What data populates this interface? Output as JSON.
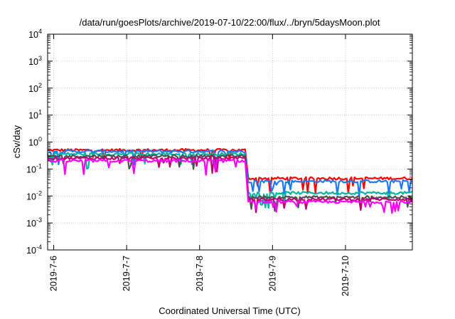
{
  "chart_data": {
    "type": "line",
    "title": "/data/run/goesPlots/archive/2019-07-10/22:00/flux/../bryn/5daysMoon.plot",
    "xlabel": "Coordinated Universal Time (UTC)",
    "ylabel": "cSv/day",
    "yscale": "log",
    "ylim": [
      0.0001,
      10000
    ],
    "xlim": [
      "2019-07-05T22:00",
      "2019-07-10T22:00"
    ],
    "y_ticks": [
      {
        "base": "10",
        "exp": "-4"
      },
      {
        "base": "10",
        "exp": "-3"
      },
      {
        "base": "10",
        "exp": "-2"
      },
      {
        "base": "10",
        "exp": "-1"
      },
      {
        "base": "10",
        "exp": "0"
      },
      {
        "base": "10",
        "exp": "1"
      },
      {
        "base": "10",
        "exp": "2"
      },
      {
        "base": "10",
        "exp": "3"
      },
      {
        "base": "10",
        "exp": "4"
      }
    ],
    "x_ticks": [
      {
        "label": "2019-7-6",
        "x": "2019-07-06T00:00"
      },
      {
        "label": "2019-7-7",
        "x": "2019-07-07T00:00"
      },
      {
        "label": "2019-7-8",
        "x": "2019-07-08T00:00"
      },
      {
        "label": "2019-7-9",
        "x": "2019-07-09T00:00"
      },
      {
        "label": "2019-7-10",
        "x": "2019-07-10T00:00"
      }
    ],
    "grid": true,
    "legend": "none",
    "series": [
      {
        "color": "#ff0000",
        "segments": [
          {
            "from": "2019-07-05T22:00",
            "to": "2019-07-08T15:00",
            "level": 0.5
          },
          {
            "from": "2019-07-08T16:00",
            "to": "2019-07-10T22:00",
            "level": 0.045
          }
        ]
      },
      {
        "color": "#1e78ff",
        "segments": [
          {
            "from": "2019-07-05T22:00",
            "to": "2019-07-08T15:00",
            "level": 0.45
          },
          {
            "from": "2019-07-08T16:00",
            "to": "2019-07-10T22:00",
            "level": 0.035
          }
        ]
      },
      {
        "color": "#00b4a0",
        "segments": [
          {
            "from": "2019-07-05T22:00",
            "to": "2019-07-08T15:00",
            "level": 0.36
          },
          {
            "from": "2019-07-08T16:00",
            "to": "2019-07-10T22:00",
            "level": 0.013
          }
        ]
      },
      {
        "color": "#505050",
        "segments": [
          {
            "from": "2019-07-05T22:00",
            "to": "2019-07-08T15:00",
            "level": 0.3
          },
          {
            "from": "2019-07-08T16:00",
            "to": "2019-07-10T22:00",
            "level": 0.009
          }
        ]
      },
      {
        "color": "#c00070",
        "segments": [
          {
            "from": "2019-07-05T22:00",
            "to": "2019-07-08T15:00",
            "level": 0.25
          },
          {
            "from": "2019-07-08T16:00",
            "to": "2019-07-10T22:00",
            "level": 0.0075
          }
        ]
      },
      {
        "color": "#ff00ff",
        "segments": [
          {
            "from": "2019-07-05T22:00",
            "to": "2019-07-08T15:00",
            "level": 0.2
          },
          {
            "from": "2019-07-08T16:00",
            "to": "2019-07-10T22:00",
            "level": 0.006
          }
        ]
      }
    ]
  }
}
